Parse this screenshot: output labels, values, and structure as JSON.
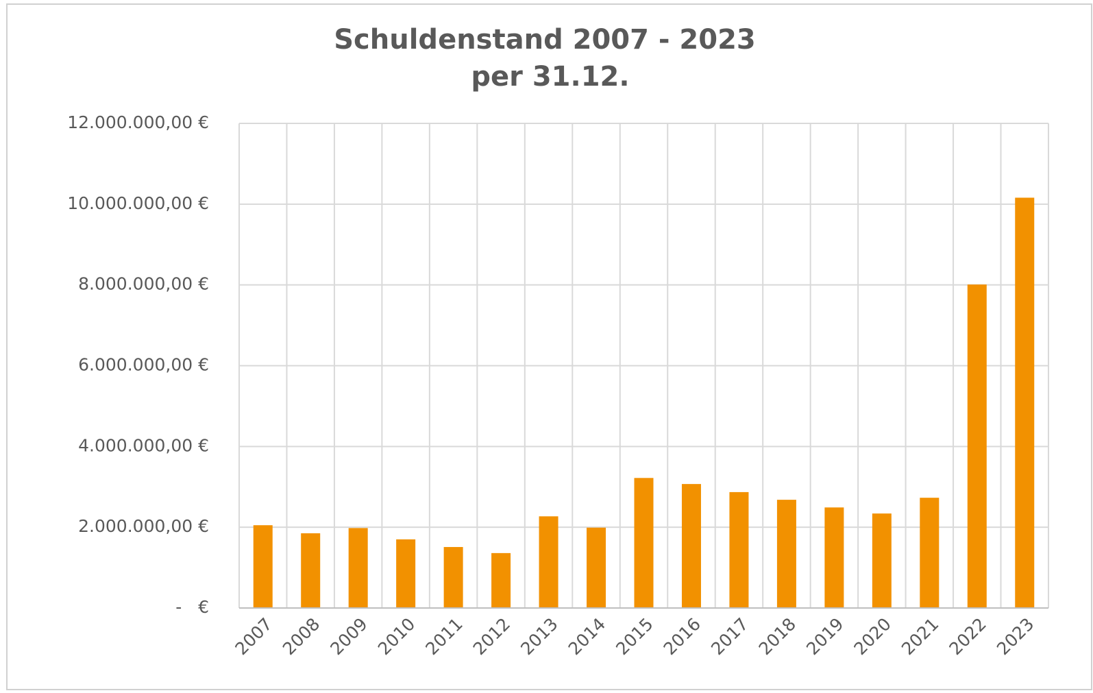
{
  "chart_data": {
    "type": "bar",
    "title": "Schuldenstand 2007 - 2023",
    "subtitle": "per 31.12.",
    "categories": [
      "2007",
      "2008",
      "2009",
      "2010",
      "2011",
      "2012",
      "2013",
      "2014",
      "2015",
      "2016",
      "2017",
      "2018",
      "2019",
      "2020",
      "2021",
      "2022",
      "2023"
    ],
    "values": [
      2050000,
      1850000,
      1980000,
      1700000,
      1510000,
      1360000,
      2270000,
      1990000,
      3220000,
      3070000,
      2870000,
      2680000,
      2490000,
      2340000,
      2730000,
      8010000,
      10160000
    ],
    "color": "#f29100",
    "ylim": [
      0,
      12000000
    ],
    "yticks": [
      {
        "value": 0,
        "label": "-   €"
      },
      {
        "value": 2000000,
        "label": "2.000.000,00 €"
      },
      {
        "value": 4000000,
        "label": "4.000.000,00 €"
      },
      {
        "value": 6000000,
        "label": "6.000.000,00 €"
      },
      {
        "value": 8000000,
        "label": "8.000.000,00 €"
      },
      {
        "value": 10000000,
        "label": "10.000.000,00 €"
      },
      {
        "value": 12000000,
        "label": "12.000.000,00 €"
      }
    ],
    "grid": true
  }
}
